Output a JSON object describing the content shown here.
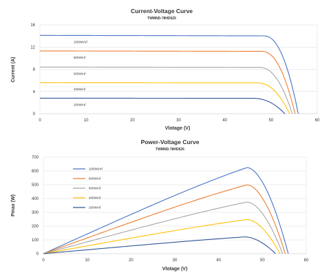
{
  "chart_data": [
    {
      "type": "line",
      "title": "Current-Voltage Curve",
      "subtitle": "TWMND-78HD625",
      "xlabel": "Vlotage (V)",
      "ylabel": "Current (A)",
      "xlim": [
        0,
        60
      ],
      "ylim": [
        0,
        16
      ],
      "xticks": [
        0,
        10,
        20,
        30,
        40,
        50,
        60
      ],
      "yticks": [
        0,
        4,
        8,
        12,
        16
      ],
      "grid": "horizontal",
      "legend_position": "left, inline labels above curves",
      "series": [
        {
          "name": "1000W/㎡",
          "color": "#4472C4",
          "isc": 14.1,
          "voc": 55.9,
          "knee": 48.5
        },
        {
          "name": "800W/㎡",
          "color": "#ED7D31",
          "isc": 11.3,
          "voc": 55.2,
          "knee": 48.0
        },
        {
          "name": "600W/㎡",
          "color": "#A5A5A5",
          "isc": 8.4,
          "voc": 54.6,
          "knee": 47.5
        },
        {
          "name": "400W/㎡",
          "color": "#FFC000",
          "isc": 5.6,
          "voc": 54.0,
          "knee": 47.0
        },
        {
          "name": "200W/㎡",
          "color": "#2F5597",
          "isc": 2.8,
          "voc": 53.0,
          "knee": 46.0
        }
      ]
    },
    {
      "type": "line",
      "title": "Power-Voltage Curve",
      "subtitle": "TWMND-78HD625",
      "xlabel": "Vlotage (V)",
      "ylabel": "Pmax (W)",
      "xlim": [
        0,
        60
      ],
      "ylim": [
        0,
        700
      ],
      "xticks": [
        0,
        10,
        20,
        30,
        40,
        50,
        60
      ],
      "yticks": [
        0,
        100,
        200,
        300,
        400,
        500,
        600,
        700
      ],
      "grid": "horizontal",
      "legend_position": "top-left",
      "series": [
        {
          "name": "1000W/㎡",
          "color": "#4472C4",
          "pmax": 625,
          "vmp": 46.5,
          "voc": 55.9
        },
        {
          "name": "800W/㎡",
          "color": "#ED7D31",
          "pmax": 500,
          "vmp": 46.5,
          "voc": 55.2
        },
        {
          "name": "600W/㎡",
          "color": "#A5A5A5",
          "pmax": 375,
          "vmp": 46.5,
          "voc": 54.6
        },
        {
          "name": "400W/㎡",
          "color": "#FFC000",
          "pmax": 248,
          "vmp": 46.5,
          "voc": 54.0
        },
        {
          "name": "200W/㎡",
          "color": "#2F5597",
          "pmax": 122,
          "vmp": 46.0,
          "voc": 53.0
        }
      ]
    }
  ]
}
